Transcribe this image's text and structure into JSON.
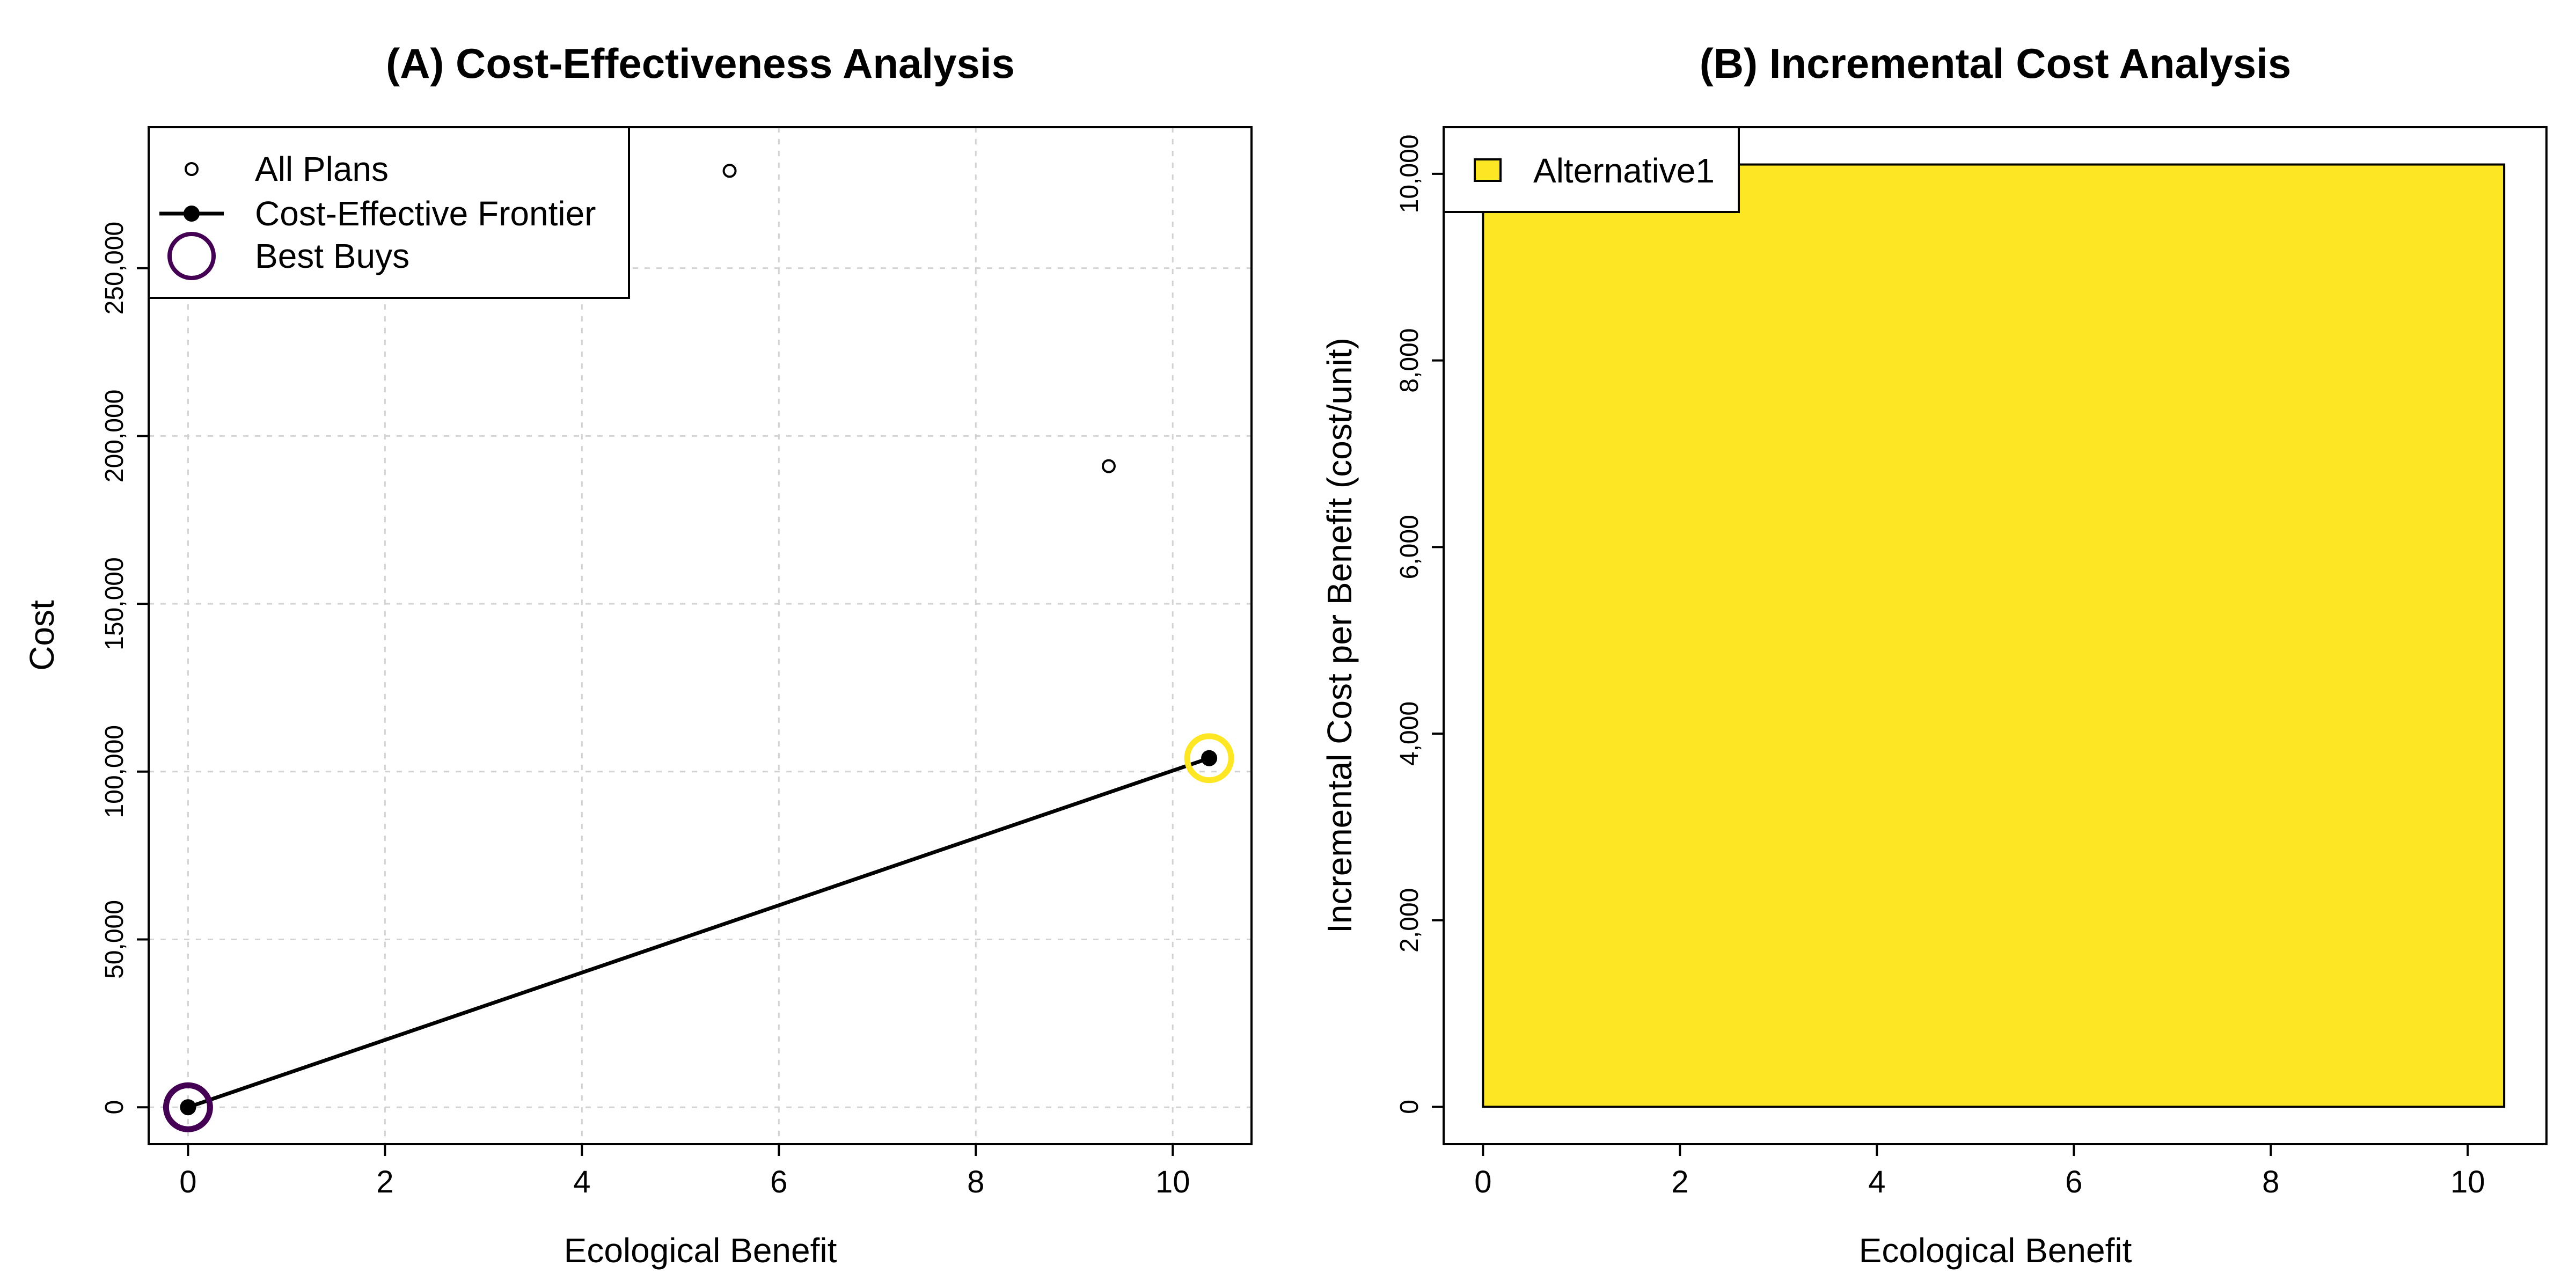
{
  "chart_data": [
    {
      "type": "scatter",
      "title": "(A) Cost-Effectiveness Analysis",
      "xlabel": "Ecological Benefit",
      "ylabel": "Cost",
      "xlim": [
        -0.4,
        10.8
      ],
      "ylim": [
        -11000,
        292000
      ],
      "xticks": [
        0,
        2,
        4,
        6,
        8,
        10
      ],
      "yticks": [
        0,
        50000,
        100000,
        150000,
        200000,
        250000
      ],
      "xtick_labels": [
        "0",
        "2",
        "4",
        "6",
        "8",
        "10"
      ],
      "ytick_labels": [
        "0",
        "50,000",
        "100,000",
        "150,000",
        "200,000",
        "250,000"
      ],
      "grid": true,
      "legend_position": "top-left",
      "series": [
        {
          "name": "All Plans",
          "marker": "open-circle",
          "points": [
            {
              "x": 0,
              "y": 0
            },
            {
              "x": 5.5,
              "y": 279000
            },
            {
              "x": 9.35,
              "y": 191000
            },
            {
              "x": 10.37,
              "y": 104000
            }
          ]
        },
        {
          "name": "Cost-Effective Frontier",
          "marker": "filled-circle-line",
          "points": [
            {
              "x": 0,
              "y": 0
            },
            {
              "x": 10.37,
              "y": 104000
            }
          ]
        },
        {
          "name": "Best Buys",
          "marker": "ring",
          "points": [
            {
              "x": 0,
              "y": 0,
              "color": "#440154"
            },
            {
              "x": 10.37,
              "y": 104000,
              "color": "#FDE725"
            }
          ]
        }
      ],
      "legend_ring_color": "#440154"
    },
    {
      "type": "bar",
      "title": "(B) Incremental Cost Analysis",
      "xlabel": "Ecological Benefit",
      "ylabel": "Incremental Cost per Benefit (cost/unit)",
      "xlim": [
        -0.4,
        10.8
      ],
      "ylim": [
        -400,
        10500
      ],
      "xticks": [
        0,
        2,
        4,
        6,
        8,
        10
      ],
      "yticks": [
        0,
        2000,
        4000,
        6000,
        8000,
        10000
      ],
      "xtick_labels": [
        "0",
        "2",
        "4",
        "6",
        "8",
        "10"
      ],
      "ytick_labels": [
        "0",
        "2,000",
        "4,000",
        "6,000",
        "8,000",
        "10,000"
      ],
      "grid": false,
      "legend_position": "top-left",
      "bars": [
        {
          "name": "Alternative1",
          "x_start": 0,
          "x_end": 10.37,
          "value": 10100,
          "color": "#FDE725"
        }
      ]
    }
  ]
}
